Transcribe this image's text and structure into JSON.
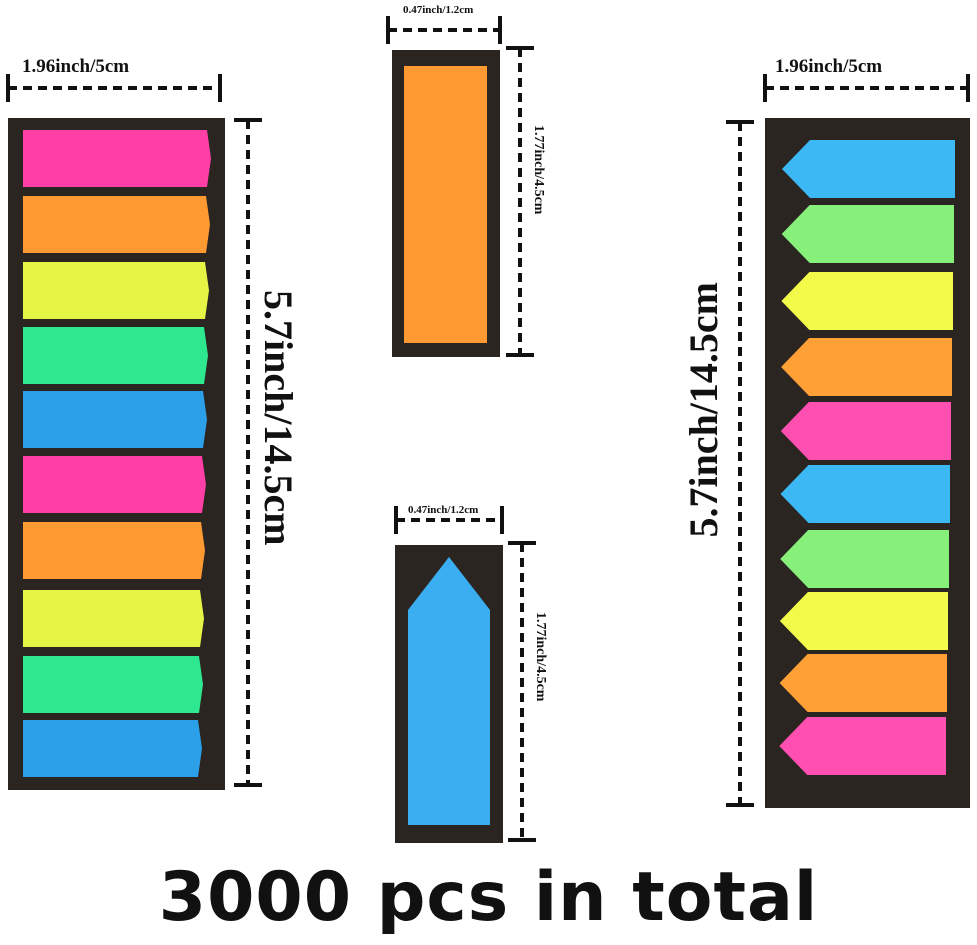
{
  "left_strip": {
    "width_label": "1.96inch/5cm",
    "height_label": "5.7inch/14.5cm",
    "tab_shape": "flag-rectangle",
    "tab_colors": [
      "#ff3fa6",
      "#ff9a32",
      "#e6f545",
      "#2ee890",
      "#2b9fe8",
      "#ff3fa6",
      "#ff9a32",
      "#e6f545",
      "#2ee890",
      "#2b9fe8"
    ]
  },
  "middle_top": {
    "width_label": "0.47inch/1.2cm",
    "height_label": "1.77inch/4.5cm",
    "tab_shape": "rectangle",
    "tab_color": "#ff9a32"
  },
  "middle_bottom": {
    "width_label": "0.47inch/1.2cm",
    "height_label": "1.77inch/4.5cm",
    "tab_shape": "arrow-up",
    "tab_color": "#3aaef0"
  },
  "right_strip": {
    "width_label": "1.96inch/5cm",
    "height_label": "5.7inch/14.5cm",
    "tab_shape": "arrow-left",
    "tab_colors": [
      "#3cb8f5",
      "#86f07a",
      "#f3fb4a",
      "#ffa036",
      "#ff4fb0",
      "#3cb8f5",
      "#86f07a",
      "#f3fb4a",
      "#ffa036",
      "#ff4fb0"
    ]
  },
  "caption": "3000 pcs in total"
}
